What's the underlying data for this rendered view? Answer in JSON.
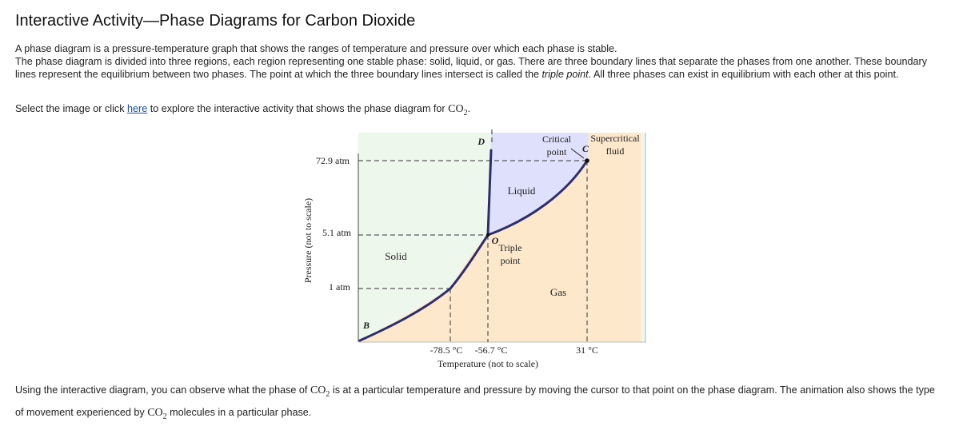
{
  "title": "Interactive Activity—Phase Diagrams for Carbon Dioxide",
  "intro": {
    "line1": "A phase diagram is a pressure-temperature graph that shows the ranges of temperature and pressure over which each phase is stable.",
    "line2_before": "The phase diagram is divided into three regions, each region representing one stable phase: solid, liquid, or gas. There are three boundary lines that separate the phases from one another. These boundary lines represent the equilibrium between two phases. The point at which the three boundary lines intersect is called the ",
    "line2_term": "triple point",
    "line2_after": ". All three phases can exist in equilibrium with each other at this point."
  },
  "instruction": {
    "before": "Select the image or click ",
    "link": "here",
    "after": " to explore the interactive activity that shows the phase diagram for ",
    "formula_base": "CO",
    "formula_sub": "2",
    "end": "."
  },
  "diagram": {
    "y_axis_label": "Pressure (not to scale)",
    "x_axis_label": "Temperature (not to scale)",
    "pressure_ticks": [
      "72.9 atm",
      "5.1 atm",
      "1 atm"
    ],
    "temperature_ticks": [
      "-78.5 °C",
      "-56.7 °C",
      "31 °C"
    ],
    "regions": {
      "solid": "Solid",
      "liquid": "Liquid",
      "gas": "Gas",
      "supercritical_line1": "Supercritical",
      "supercritical_line2": "fluid"
    },
    "points": {
      "D": "D",
      "B": "B",
      "O": "O",
      "C": "C",
      "triple_line1": "Triple",
      "triple_line2": "point",
      "critical_line1": "Critical",
      "critical_line2": "point"
    },
    "colors": {
      "solid": "#eef7ec",
      "liquid": "#dfe0fb",
      "gas": "#fde8cc",
      "curve": "#2e2e6e"
    }
  },
  "bottom": {
    "before": "Using the interactive diagram, you can observe what the phase of ",
    "formula_base": "CO",
    "formula_sub": "2",
    "middle": " is at a particular temperature and pressure by moving the cursor to that point on the phase diagram. The animation also shows the type of movement experienced by ",
    "formula2_base": "CO",
    "formula2_sub": "2",
    "after": " molecules in a particular phase."
  }
}
